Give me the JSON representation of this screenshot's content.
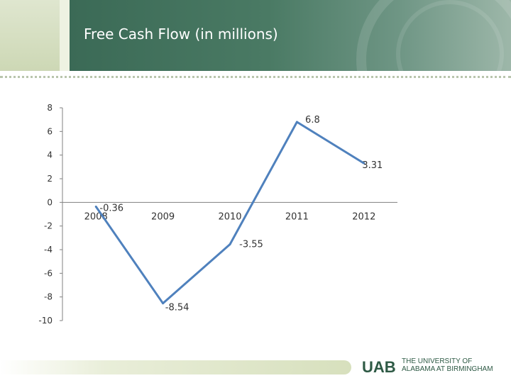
{
  "slide": {
    "title": "Free Cash Flow (in millions)"
  },
  "colors": {
    "header_green": "#3b6a56",
    "line": "#4f81bd",
    "axis": "#808080",
    "logo": "#2e5a45"
  },
  "footer": {
    "logo_mark": "UAB",
    "logo_line1": "THE UNIVERSITY OF",
    "logo_line2": "ALABAMA AT BIRMINGHAM"
  },
  "chart_data": {
    "type": "line",
    "title": "",
    "categories": [
      "2008",
      "2009",
      "2010",
      "2011",
      "2012"
    ],
    "series": [
      {
        "values": [
          -0.36,
          -8.54,
          -3.55,
          6.8,
          3.31
        ]
      }
    ],
    "data_labels": [
      "-0.36",
      "-8.54",
      "-3.55",
      "6.8",
      "3.31"
    ],
    "y_ticks": [
      "8",
      "6",
      "4",
      "2",
      "0",
      "-2",
      "-4",
      "-6",
      "-8",
      "-10"
    ],
    "ylim": [
      -10,
      8
    ],
    "grid": false,
    "legend": "none"
  }
}
